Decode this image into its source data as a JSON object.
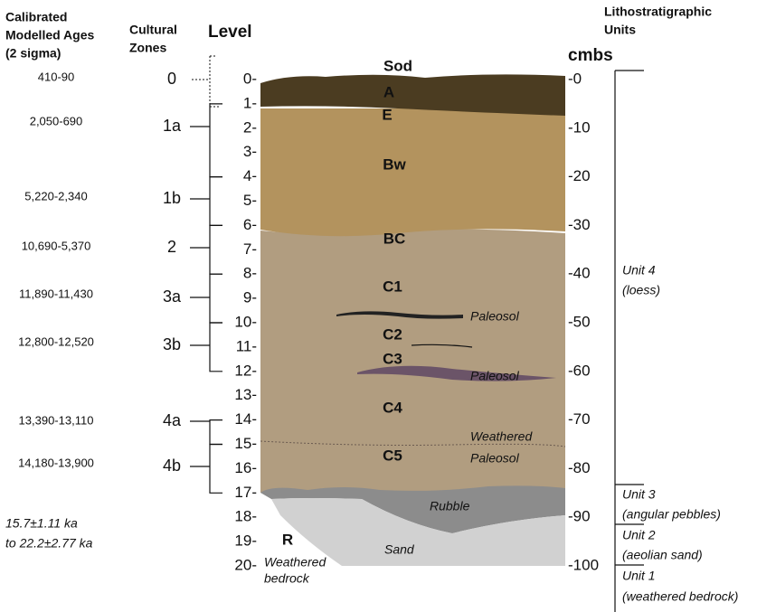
{
  "headers": {
    "ages": [
      "Calibrated",
      "Modelled Ages",
      "(2 sigma)"
    ],
    "zones": [
      "Cultural",
      "Zones"
    ],
    "level": "Level",
    "units": [
      "Lithostratigraphic",
      "Units"
    ],
    "depth": "cmbs"
  },
  "ages": [
    "410-90",
    "2,050-690",
    "5,220-2,340",
    "10,690-5,370",
    "11,890-11,430",
    "12,800-12,520",
    "13,390-13,110",
    "14,180-13,900"
  ],
  "age_range": [
    "15.7±1.11 ka",
    "to 22.2±2.77 ka"
  ],
  "zones": [
    "0",
    "1a",
    "1b",
    "2",
    "3a",
    "3b",
    "4a",
    "4b"
  ],
  "levels": [
    "0-",
    "1-",
    "2-",
    "3-",
    "4-",
    "5-",
    "6-",
    "7-",
    "8-",
    "9-",
    "10-",
    "11-",
    "12-",
    "13-",
    "14-",
    "15-",
    "16-",
    "17-",
    "18-",
    "19-",
    "20-"
  ],
  "depths": [
    "-0",
    "-10",
    "-20",
    "-30",
    "-40",
    "-50",
    "-60",
    "-70",
    "-80",
    "-90",
    "-100"
  ],
  "horizons": [
    "Sod",
    "A",
    "E",
    "Bw",
    "BC",
    "C1",
    "C2",
    "C3",
    "C4",
    "C5",
    "R"
  ],
  "annotations": {
    "paleosol_1": "Paleosol",
    "paleosol_2": "Paleosol",
    "weathered_paleosol": [
      "Weathered",
      "Paleosol"
    ],
    "rubble": "Rubble",
    "sand": "Sand",
    "bedrock": [
      "Weathered",
      "bedrock"
    ]
  },
  "units": [
    {
      "name": "Unit 4",
      "desc": "(loess)"
    },
    {
      "name": "Unit 3",
      "desc": "(angular pebbles)"
    },
    {
      "name": "Unit 2",
      "desc": "(aeolian sand)"
    },
    {
      "name": "Unit 1",
      "desc": "(weathered bedrock)"
    }
  ]
}
